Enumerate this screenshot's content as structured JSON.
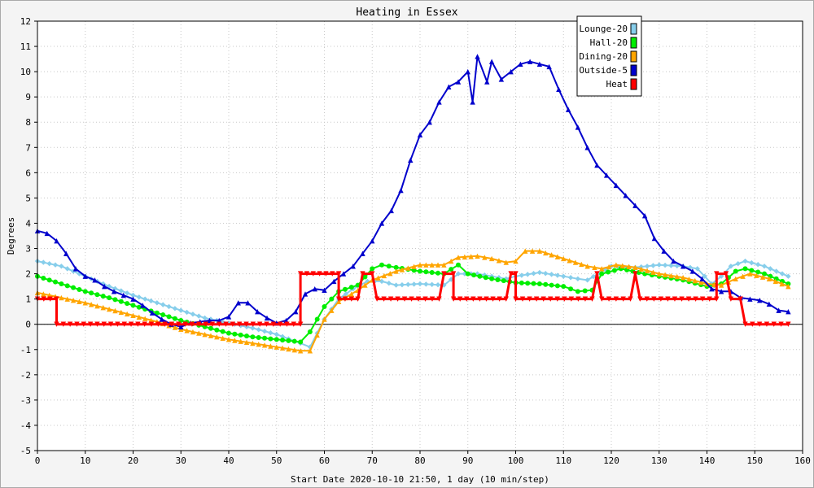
{
  "chart_data": {
    "type": "line",
    "title": "Heating in Essex",
    "xlabel": "Start Date 2020-10-10 21:50, 1 day (10 min/step)",
    "ylabel": "Degrees",
    "xlim": [
      0,
      160
    ],
    "ylim": [
      -5,
      12
    ],
    "xticks": [
      0,
      10,
      20,
      30,
      40,
      50,
      60,
      70,
      80,
      90,
      100,
      110,
      120,
      130,
      140,
      150,
      160
    ],
    "yticks": [
      -5,
      -4,
      -3,
      -2,
      -1,
      0,
      1,
      2,
      3,
      4,
      5,
      6,
      7,
      8,
      9,
      10,
      11,
      12
    ],
    "grid": true,
    "legend_position": "top-right",
    "series": [
      {
        "name": "Lounge-20",
        "color": "#87ceeb",
        "marker": "diamond",
        "points": [
          [
            0,
            2.5
          ],
          [
            5,
            2.3
          ],
          [
            10,
            1.9
          ],
          [
            15,
            1.5
          ],
          [
            20,
            1.15
          ],
          [
            25,
            0.85
          ],
          [
            30,
            0.55
          ],
          [
            35,
            0.25
          ],
          [
            40,
            0.05
          ],
          [
            45,
            -0.15
          ],
          [
            50,
            -0.4
          ],
          [
            55,
            -0.75
          ],
          [
            57,
            -0.9
          ],
          [
            60,
            0.2
          ],
          [
            63,
            1.0
          ],
          [
            66,
            1.4
          ],
          [
            69,
            1.7
          ],
          [
            72,
            1.7
          ],
          [
            75,
            1.55
          ],
          [
            80,
            1.6
          ],
          [
            85,
            1.55
          ],
          [
            88,
            2.0
          ],
          [
            92,
            2.0
          ],
          [
            95,
            1.9
          ],
          [
            98,
            1.8
          ],
          [
            100,
            1.9
          ],
          [
            105,
            2.05
          ],
          [
            110,
            1.9
          ],
          [
            113,
            1.8
          ],
          [
            115,
            1.75
          ],
          [
            120,
            2.3
          ],
          [
            125,
            2.25
          ],
          [
            130,
            2.35
          ],
          [
            135,
            2.3
          ],
          [
            138,
            2.2
          ],
          [
            141,
            1.6
          ],
          [
            143,
            1.9
          ],
          [
            145,
            2.3
          ],
          [
            148,
            2.5
          ],
          [
            152,
            2.3
          ],
          [
            157,
            1.9
          ]
        ]
      },
      {
        "name": "Hall-20",
        "color": "#00ee00",
        "marker": "circle",
        "points": [
          [
            0,
            1.9
          ],
          [
            5,
            1.6
          ],
          [
            10,
            1.3
          ],
          [
            15,
            1.05
          ],
          [
            20,
            0.75
          ],
          [
            25,
            0.45
          ],
          [
            30,
            0.15
          ],
          [
            35,
            -0.1
          ],
          [
            40,
            -0.35
          ],
          [
            45,
            -0.5
          ],
          [
            50,
            -0.6
          ],
          [
            55,
            -0.7
          ],
          [
            57,
            -0.3
          ],
          [
            60,
            0.7
          ],
          [
            63,
            1.3
          ],
          [
            67,
            1.55
          ],
          [
            70,
            2.2
          ],
          [
            72,
            2.35
          ],
          [
            75,
            2.25
          ],
          [
            80,
            2.1
          ],
          [
            85,
            2.0
          ],
          [
            88,
            2.35
          ],
          [
            90,
            2.0
          ],
          [
            95,
            1.8
          ],
          [
            100,
            1.65
          ],
          [
            105,
            1.6
          ],
          [
            110,
            1.5
          ],
          [
            113,
            1.3
          ],
          [
            116,
            1.35
          ],
          [
            118,
            2.0
          ],
          [
            122,
            2.2
          ],
          [
            127,
            2.0
          ],
          [
            130,
            1.9
          ],
          [
            135,
            1.75
          ],
          [
            140,
            1.5
          ],
          [
            143,
            1.6
          ],
          [
            146,
            2.1
          ],
          [
            148,
            2.2
          ],
          [
            152,
            2.0
          ],
          [
            157,
            1.6
          ]
        ]
      },
      {
        "name": "Dining-20",
        "color": "#ffa500",
        "marker": "triangle",
        "points": [
          [
            0,
            1.25
          ],
          [
            5,
            1.05
          ],
          [
            10,
            0.85
          ],
          [
            15,
            0.6
          ],
          [
            20,
            0.35
          ],
          [
            25,
            0.1
          ],
          [
            30,
            -0.2
          ],
          [
            35,
            -0.4
          ],
          [
            40,
            -0.6
          ],
          [
            45,
            -0.75
          ],
          [
            50,
            -0.9
          ],
          [
            55,
            -1.05
          ],
          [
            57,
            -1.05
          ],
          [
            60,
            0.2
          ],
          [
            63,
            0.9
          ],
          [
            67,
            1.35
          ],
          [
            70,
            1.75
          ],
          [
            75,
            2.1
          ],
          [
            80,
            2.35
          ],
          [
            85,
            2.35
          ],
          [
            88,
            2.65
          ],
          [
            92,
            2.7
          ],
          [
            95,
            2.6
          ],
          [
            98,
            2.45
          ],
          [
            100,
            2.5
          ],
          [
            102,
            2.9
          ],
          [
            105,
            2.9
          ],
          [
            110,
            2.6
          ],
          [
            115,
            2.3
          ],
          [
            118,
            2.2
          ],
          [
            121,
            2.35
          ],
          [
            125,
            2.25
          ],
          [
            130,
            2.0
          ],
          [
            135,
            1.85
          ],
          [
            140,
            1.6
          ],
          [
            143,
            1.55
          ],
          [
            146,
            1.8
          ],
          [
            149,
            2.0
          ],
          [
            153,
            1.8
          ],
          [
            157,
            1.5
          ]
        ]
      },
      {
        "name": "Outside-5",
        "color": "#0000cc",
        "marker": "triangle",
        "points": [
          [
            0,
            3.7
          ],
          [
            2,
            3.6
          ],
          [
            4,
            3.3
          ],
          [
            6,
            2.8
          ],
          [
            8,
            2.2
          ],
          [
            10,
            1.9
          ],
          [
            12,
            1.75
          ],
          [
            14,
            1.5
          ],
          [
            16,
            1.3
          ],
          [
            18,
            1.15
          ],
          [
            20,
            1.0
          ],
          [
            22,
            0.75
          ],
          [
            24,
            0.45
          ],
          [
            26,
            0.2
          ],
          [
            28,
            0.0
          ],
          [
            30,
            -0.1
          ],
          [
            32,
            0.05
          ],
          [
            34,
            0.1
          ],
          [
            36,
            0.15
          ],
          [
            38,
            0.15
          ],
          [
            40,
            0.3
          ],
          [
            42,
            0.85
          ],
          [
            44,
            0.85
          ],
          [
            46,
            0.5
          ],
          [
            48,
            0.25
          ],
          [
            50,
            0.05
          ],
          [
            52,
            0.15
          ],
          [
            54,
            0.5
          ],
          [
            56,
            1.2
          ],
          [
            58,
            1.4
          ],
          [
            60,
            1.35
          ],
          [
            62,
            1.7
          ],
          [
            64,
            2.0
          ],
          [
            66,
            2.3
          ],
          [
            68,
            2.8
          ],
          [
            70,
            3.3
          ],
          [
            72,
            4.0
          ],
          [
            74,
            4.5
          ],
          [
            76,
            5.3
          ],
          [
            78,
            6.5
          ],
          [
            80,
            7.5
          ],
          [
            82,
            8.0
          ],
          [
            84,
            8.8
          ],
          [
            86,
            9.4
          ],
          [
            88,
            9.6
          ],
          [
            90,
            10.0
          ],
          [
            91,
            8.8
          ],
          [
            92,
            10.6
          ],
          [
            94,
            9.6
          ],
          [
            95,
            10.4
          ],
          [
            97,
            9.7
          ],
          [
            99,
            10.0
          ],
          [
            101,
            10.3
          ],
          [
            103,
            10.4
          ],
          [
            105,
            10.3
          ],
          [
            107,
            10.2
          ],
          [
            109,
            9.3
          ],
          [
            111,
            8.5
          ],
          [
            113,
            7.8
          ],
          [
            115,
            7.0
          ],
          [
            117,
            6.3
          ],
          [
            119,
            5.9
          ],
          [
            121,
            5.5
          ],
          [
            123,
            5.1
          ],
          [
            125,
            4.7
          ],
          [
            127,
            4.3
          ],
          [
            129,
            3.4
          ],
          [
            131,
            2.9
          ],
          [
            133,
            2.5
          ],
          [
            135,
            2.3
          ],
          [
            137,
            2.1
          ],
          [
            139,
            1.8
          ],
          [
            141,
            1.4
          ],
          [
            143,
            1.3
          ],
          [
            145,
            1.3
          ],
          [
            147,
            1.05
          ],
          [
            149,
            1.0
          ],
          [
            151,
            0.95
          ],
          [
            153,
            0.8
          ],
          [
            155,
            0.55
          ],
          [
            157,
            0.5
          ]
        ]
      },
      {
        "name": "Heat",
        "color": "#ff0000",
        "marker": "triangle-down",
        "points": [
          [
            0,
            1
          ],
          [
            4,
            1
          ],
          [
            4,
            0
          ],
          [
            55,
            0
          ],
          [
            55,
            2
          ],
          [
            63,
            2
          ],
          [
            63,
            1
          ],
          [
            67,
            1
          ],
          [
            68,
            2
          ],
          [
            70,
            2
          ],
          [
            71,
            1
          ],
          [
            84,
            1
          ],
          [
            85,
            2
          ],
          [
            87,
            2
          ],
          [
            87,
            1
          ],
          [
            98,
            1
          ],
          [
            99,
            2
          ],
          [
            100,
            2
          ],
          [
            100,
            1
          ],
          [
            116,
            1
          ],
          [
            117,
            2
          ],
          [
            118,
            1
          ],
          [
            124,
            1
          ],
          [
            125,
            2
          ],
          [
            126,
            1
          ],
          [
            142,
            1
          ],
          [
            142,
            2
          ],
          [
            144,
            2
          ],
          [
            145,
            1
          ],
          [
            147,
            1
          ],
          [
            148,
            0
          ],
          [
            157,
            0
          ]
        ]
      }
    ]
  }
}
